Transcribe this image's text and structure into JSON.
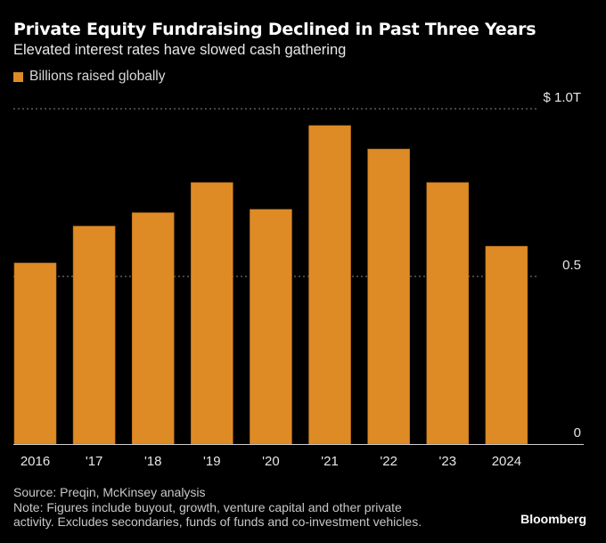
{
  "header": {
    "title": "Private Equity Fundraising Declined in Past Three Years",
    "subtitle": "Elevated interest rates have slowed cash gathering"
  },
  "legend": {
    "label": "Billions raised globally",
    "color": "#DE8B26"
  },
  "footer": {
    "source": "Source: Preqin, McKinsey analysis",
    "note_line1": "Note: Figures include buyout, growth, venture capital and other private",
    "note_line2": "activity. Excludes secondaries, funds of funds and co-investment vehicles.",
    "brand": "Bloomberg"
  },
  "chart_data": {
    "type": "bar",
    "title": "Private Equity Fundraising Declined in Past Three Years",
    "subtitle": "Elevated interest rates have slowed cash gathering",
    "categories": [
      "2016",
      "'17",
      "'18",
      "'19",
      "'20",
      "'21",
      "'22",
      "'23",
      "2024"
    ],
    "series": [
      {
        "name": "Billions raised globally",
        "values": [
          0.54,
          0.65,
          0.69,
          0.78,
          0.7,
          0.95,
          0.88,
          0.78,
          0.59
        ],
        "color": "#DE8B26"
      }
    ],
    "units": "trillions USD",
    "xlabel": "",
    "ylabel": "",
    "ylim": [
      0,
      1.0
    ],
    "yticks": [
      {
        "value": 0,
        "label": "0"
      },
      {
        "value": 0.5,
        "label": "0.5"
      },
      {
        "value": 1.0,
        "label": "$ 1.0T"
      }
    ],
    "grid": true,
    "y_axis_side": "right",
    "legend_position": "top-left"
  }
}
